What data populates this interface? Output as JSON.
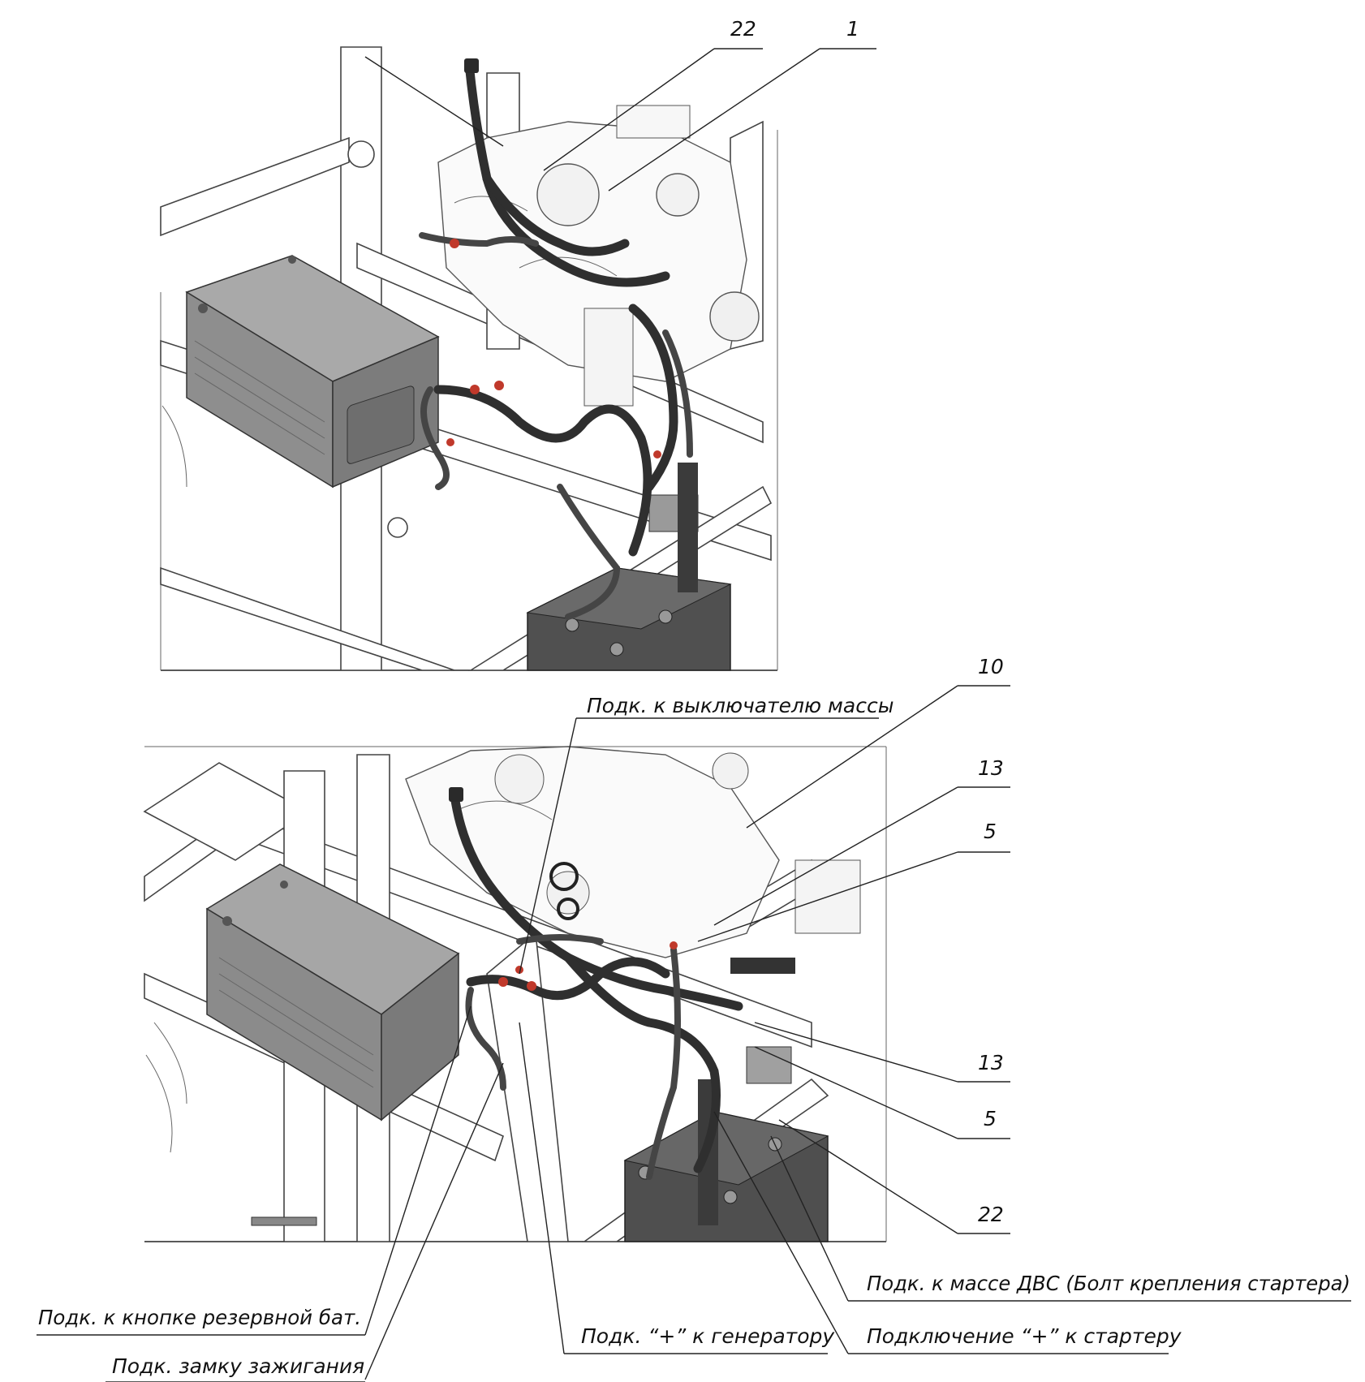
{
  "callouts": {
    "top_22": "22",
    "top_1": "1",
    "b_10": "10",
    "b_13a": "13",
    "b_5a": "5",
    "b_13b": "13",
    "b_5b": "5",
    "b_22": "22"
  },
  "labels": {
    "mass_switch": "Подк. к выключателю массы",
    "engine_ground": "Подк. к массе ДВС (Болт крепления стартера)",
    "reserve_battery_button": "Подк. к кнопке резервной бат.",
    "generator_plus": "Подк. “+” к генератору",
    "starter_plus": "Подключение “+” к стартеру",
    "ignition_lock": "Подк. замку зажигания"
  }
}
